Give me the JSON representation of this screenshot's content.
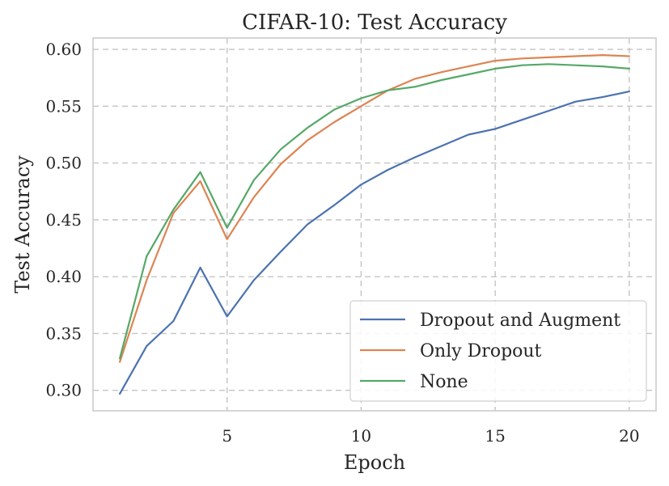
{
  "chart_data": {
    "type": "line",
    "title": "CIFAR-10: Test Accuracy",
    "xlabel": "Epoch",
    "ylabel": "Test Accuracy",
    "xlim": [
      0.0,
      21.0
    ],
    "ylim": [
      0.282,
      0.61
    ],
    "xticks": [
      5,
      10,
      15,
      20
    ],
    "yticks": [
      0.3,
      0.35,
      0.4,
      0.45,
      0.5,
      0.55,
      0.6
    ],
    "ytick_labels": [
      "0.30",
      "0.35",
      "0.40",
      "0.45",
      "0.50",
      "0.55",
      "0.60"
    ],
    "xtick_labels": [
      "5",
      "10",
      "15",
      "20"
    ],
    "grid": true,
    "legend_position": "lower-right",
    "x": [
      1,
      2,
      3,
      4,
      5,
      6,
      7,
      8,
      9,
      10,
      11,
      12,
      13,
      14,
      15,
      16,
      17,
      18,
      19,
      20
    ],
    "series": [
      {
        "name": "Dropout and Augment",
        "color": "#4c72b0",
        "values": [
          0.297,
          0.339,
          0.361,
          0.408,
          0.365,
          0.397,
          0.422,
          0.446,
          0.463,
          0.481,
          0.494,
          0.505,
          0.515,
          0.525,
          0.53,
          0.538,
          0.546,
          0.554,
          0.558,
          0.563
        ]
      },
      {
        "name": "Only Dropout",
        "color": "#dd8452",
        "values": [
          0.325,
          0.397,
          0.456,
          0.484,
          0.433,
          0.47,
          0.499,
          0.52,
          0.536,
          0.55,
          0.564,
          0.574,
          0.58,
          0.585,
          0.59,
          0.592,
          0.593,
          0.594,
          0.595,
          0.594
        ]
      },
      {
        "name": "None",
        "color": "#55a868",
        "values": [
          0.328,
          0.418,
          0.459,
          0.492,
          0.443,
          0.485,
          0.512,
          0.531,
          0.547,
          0.557,
          0.564,
          0.567,
          0.573,
          0.578,
          0.583,
          0.586,
          0.587,
          0.586,
          0.585,
          0.583
        ]
      }
    ]
  }
}
